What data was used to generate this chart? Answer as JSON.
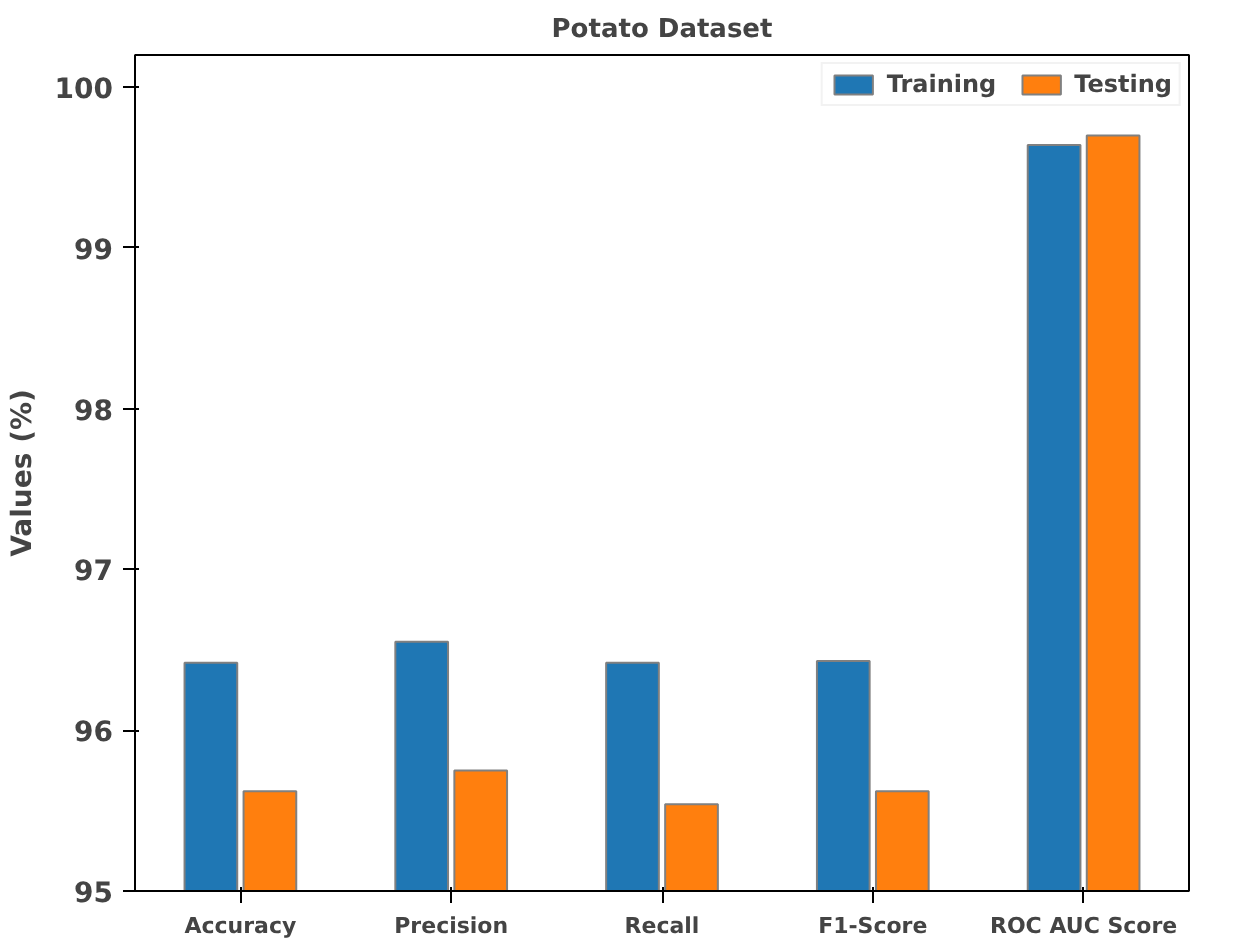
{
  "chart_data": {
    "type": "bar",
    "title": "Potato Dataset",
    "ylabel": "Values (%)",
    "categories": [
      "Accuracy",
      "Precision",
      "Recall",
      "F1-Score",
      "ROC AUC Score"
    ],
    "series": [
      {
        "name": "Training",
        "color": "#1f77b4",
        "values": [
          96.42,
          96.55,
          96.42,
          96.43,
          99.64
        ]
      },
      {
        "name": "Testing",
        "color": "#ff7f0e",
        "values": [
          95.62,
          95.75,
          95.54,
          95.62,
          99.7
        ]
      }
    ],
    "ylim": [
      95,
      100.2
    ],
    "yticks": [
      95,
      96,
      97,
      98,
      99,
      100
    ],
    "grid": false,
    "legend": "top right"
  }
}
